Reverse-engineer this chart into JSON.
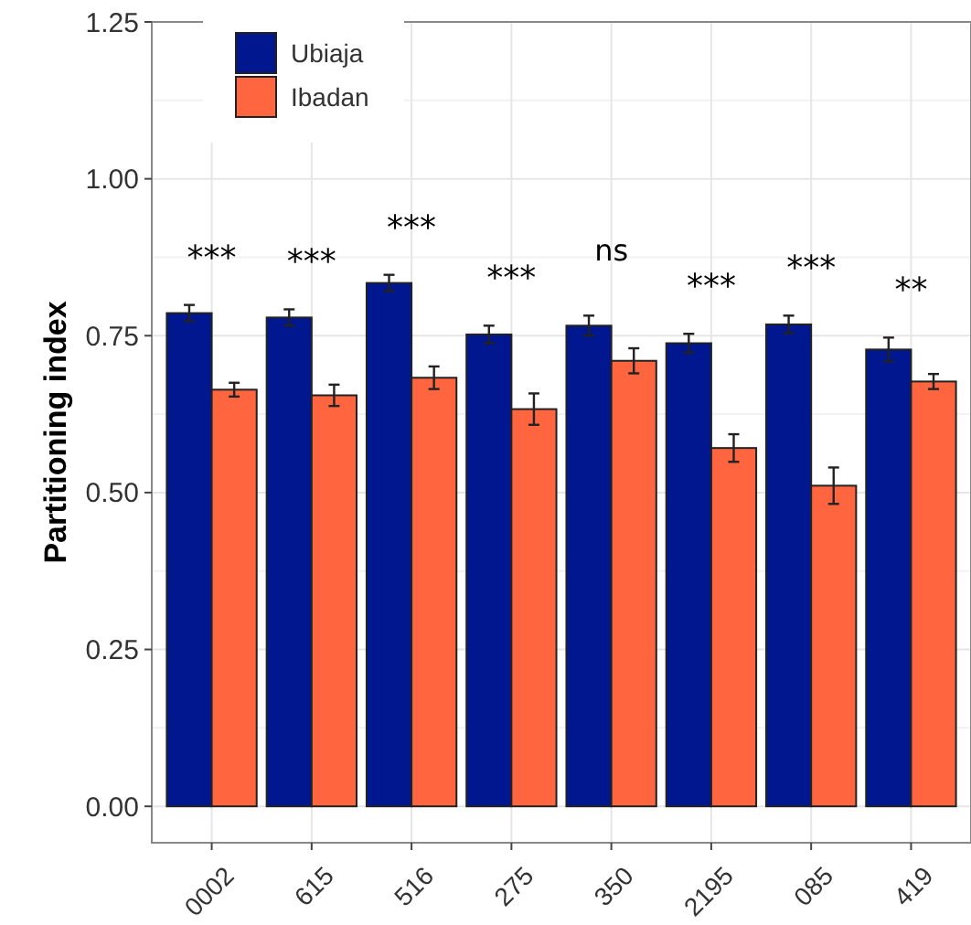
{
  "chart_data": {
    "type": "bar",
    "ylabel": "Partitioning index",
    "categories": [
      "0002",
      "615",
      "516",
      "275",
      "350",
      "2195",
      "085",
      "419"
    ],
    "series": [
      {
        "name": "Ubiaja",
        "color": "#00178f",
        "values": [
          0.786,
          0.779,
          0.834,
          0.752,
          0.766,
          0.738,
          0.768,
          0.728
        ],
        "errors": [
          0.013,
          0.013,
          0.013,
          0.014,
          0.016,
          0.015,
          0.014,
          0.019
        ]
      },
      {
        "name": "Ibadan",
        "color": "#ff6640",
        "values": [
          0.664,
          0.655,
          0.683,
          0.633,
          0.71,
          0.571,
          0.511,
          0.677
        ],
        "errors": [
          0.011,
          0.017,
          0.018,
          0.025,
          0.02,
          0.022,
          0.029,
          0.012
        ]
      }
    ],
    "annotations": [
      "***",
      "***",
      "***",
      "***",
      "ns",
      "***",
      "***",
      "**"
    ],
    "ylim": [
      -0.058,
      1.25
    ],
    "yticks": [
      {
        "value": 0,
        "label": "0.00"
      },
      {
        "value": 0.25,
        "label": "0.25"
      },
      {
        "value": 0.5,
        "label": "0.50"
      },
      {
        "value": 0.75,
        "label": "0.75"
      },
      {
        "value": 1,
        "label": "1.00"
      },
      {
        "value": 1.25,
        "label": "1.25"
      }
    ],
    "grid": true,
    "legend": "top left"
  }
}
